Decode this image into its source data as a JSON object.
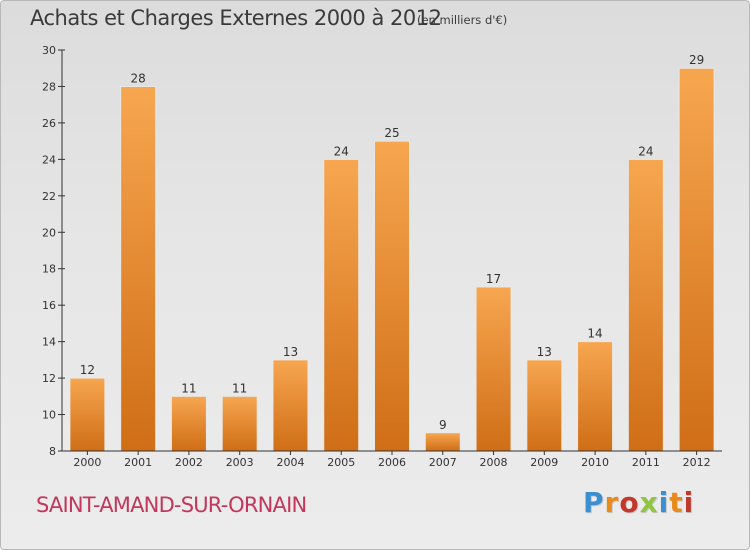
{
  "header": {
    "title": "Achats et Charges Externes 2000 à 2012",
    "subtitle": "(en milliers d'€)"
  },
  "footer": {
    "commune": "SAINT-AMAND-SUR-ORNAIN",
    "logo_text": "Proxiti",
    "logo_colors": [
      "#3b8fd0",
      "#e98b1c",
      "#c0392b",
      "#8ec63f",
      "#3b8fd0",
      "#e98b1c",
      "#c0392b"
    ]
  },
  "chart_data": {
    "type": "bar",
    "title": "Achats et Charges Externes 2000 à 2012",
    "subtitle": "(en milliers d'€)",
    "xlabel": "",
    "ylabel": "",
    "categories": [
      "2000",
      "2001",
      "2002",
      "2003",
      "2004",
      "2005",
      "2006",
      "2007",
      "2008",
      "2009",
      "2010",
      "2011",
      "2012"
    ],
    "values": [
      12,
      28,
      11,
      11,
      13,
      24,
      25,
      9,
      17,
      13,
      14,
      24,
      29
    ],
    "ylim": [
      8,
      30
    ],
    "yticks": [
      8,
      10,
      12,
      14,
      16,
      18,
      20,
      22,
      24,
      26,
      28,
      30
    ],
    "grid": false,
    "legend": "none",
    "colors": {
      "bar_light": "#f7a650",
      "bar_dark": "#cf6e16",
      "axis": "#333333",
      "label": "#333333"
    }
  }
}
